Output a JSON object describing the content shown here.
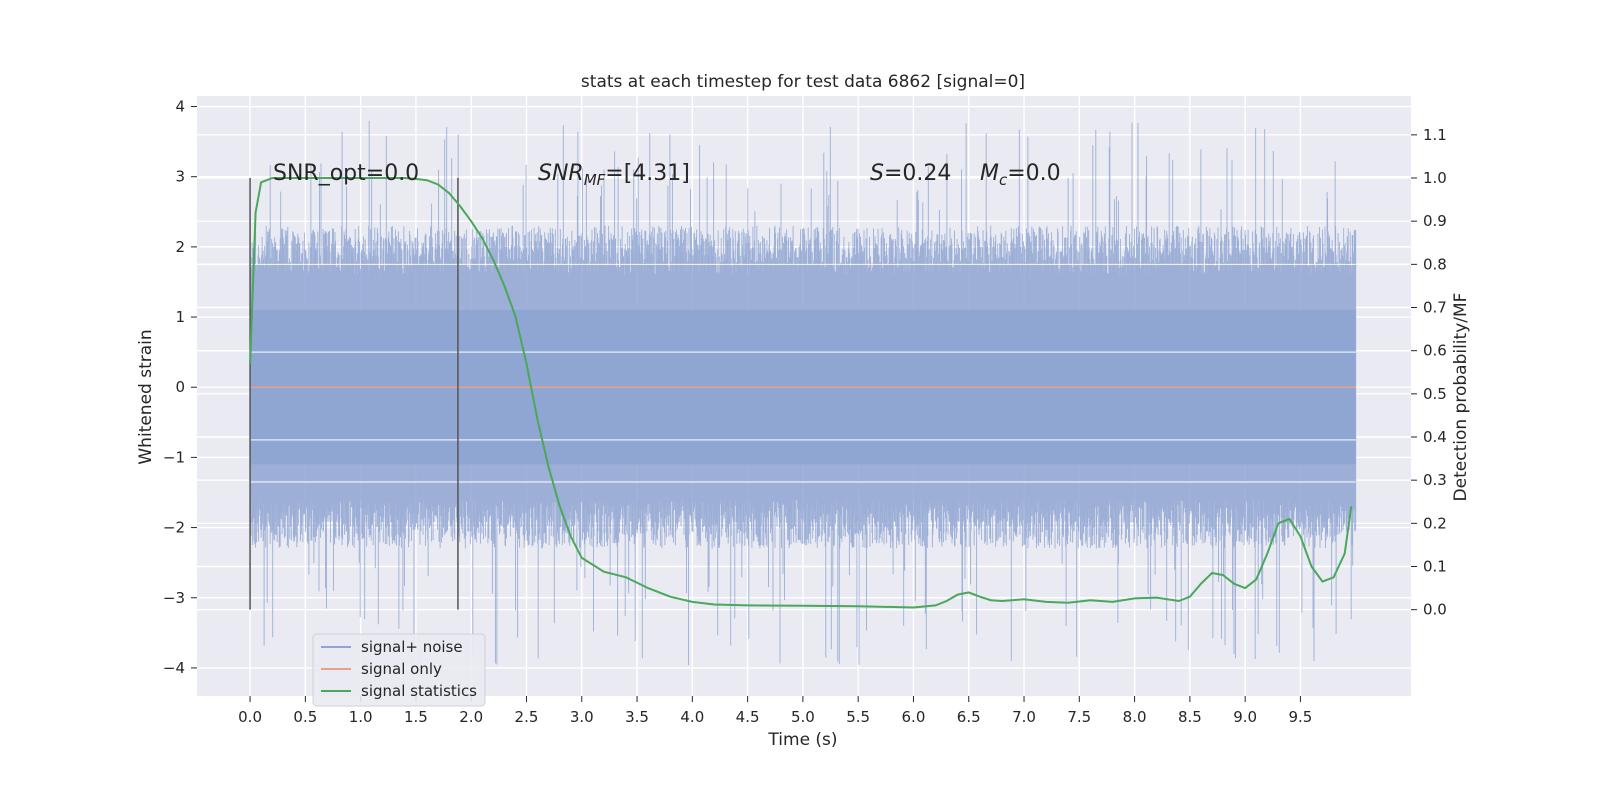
{
  "chart_data": {
    "type": "line",
    "title": "stats at each timestep for test data 6862 [signal=0]",
    "xlabel": "Time (s)",
    "ylabel_left": "Whitened strain",
    "ylabel_right": "Detection probability/MF",
    "xlim": [
      -0.48,
      10.5
    ],
    "ylim_left": [
      -4.4,
      4.15
    ],
    "ylim_right": [
      -0.2,
      1.19
    ],
    "x_ticks": [
      "0.0",
      "0.5",
      "1.0",
      "1.5",
      "2.0",
      "2.5",
      "3.0",
      "3.5",
      "4.0",
      "4.5",
      "5.0",
      "5.5",
      "6.0",
      "6.5",
      "7.0",
      "7.5",
      "8.0",
      "8.5",
      "9.0",
      "9.5"
    ],
    "y_ticks_left": [
      "−4",
      "−3",
      "−2",
      "−1",
      "0",
      "1",
      "2",
      "3",
      "4"
    ],
    "y_ticks_right": [
      "0.0",
      "0.1",
      "0.2",
      "0.3",
      "0.4",
      "0.5",
      "0.6",
      "0.7",
      "0.8",
      "0.9",
      "1.0",
      "1.1"
    ],
    "grid": true,
    "legend_position": "lower-left",
    "annotations": {
      "snr_opt": "SNR_opt=0.0",
      "snr_mf_main": "SNR",
      "snr_mf_sub": "MF",
      "snr_mf_value": "=[4.31]",
      "s_var": "S",
      "s_value": "=0.24",
      "mc_var": "M",
      "mc_sub": "c",
      "mc_value": "=0.0"
    },
    "window_markers_x": [
      0.0,
      1.88
    ],
    "series": [
      {
        "name": "signal+ noise",
        "color": "#8fa5d2",
        "axis": "left",
        "x_range": [
          0.0,
          10.0
        ],
        "envelope_note": "dense noise approximately within ±2.5, spikes up to about 3.8 and down to about -4.0"
      },
      {
        "name": "signal only",
        "color": "#e8a08a",
        "axis": "left",
        "x": [
          0.0,
          10.0
        ],
        "y": [
          0.0,
          0.0
        ]
      },
      {
        "name": "signal statistics",
        "color": "#4aa75b",
        "axis": "right",
        "x": [
          0.0,
          0.05,
          0.1,
          0.15,
          0.2,
          0.3,
          0.5,
          0.8,
          1.0,
          1.2,
          1.4,
          1.5,
          1.6,
          1.7,
          1.8,
          1.9,
          2.0,
          2.1,
          2.2,
          2.3,
          2.4,
          2.5,
          2.6,
          2.7,
          2.8,
          2.9,
          3.0,
          3.2,
          3.4,
          3.6,
          3.8,
          4.0,
          4.2,
          4.5,
          5.0,
          5.5,
          6.0,
          6.2,
          6.3,
          6.4,
          6.5,
          6.6,
          6.7,
          6.8,
          7.0,
          7.2,
          7.4,
          7.6,
          7.8,
          8.0,
          8.2,
          8.4,
          8.5,
          8.6,
          8.7,
          8.8,
          8.9,
          9.0,
          9.1,
          9.2,
          9.3,
          9.4,
          9.5,
          9.6,
          9.7,
          9.8,
          9.9,
          9.96
        ],
        "y": [
          0.57,
          0.92,
          0.99,
          0.995,
          1.0,
          1.0,
          1.0,
          1.0,
          1.0,
          1.0,
          1.0,
          0.998,
          0.995,
          0.985,
          0.965,
          0.935,
          0.9,
          0.86,
          0.81,
          0.75,
          0.68,
          0.57,
          0.44,
          0.33,
          0.24,
          0.17,
          0.12,
          0.088,
          0.075,
          0.05,
          0.03,
          0.018,
          0.012,
          0.01,
          0.009,
          0.008,
          0.005,
          0.01,
          0.02,
          0.035,
          0.04,
          0.03,
          0.022,
          0.02,
          0.024,
          0.018,
          0.016,
          0.022,
          0.018,
          0.026,
          0.028,
          0.02,
          0.03,
          0.06,
          0.085,
          0.08,
          0.06,
          0.05,
          0.07,
          0.13,
          0.2,
          0.21,
          0.17,
          0.1,
          0.065,
          0.075,
          0.13,
          0.24
        ]
      }
    ]
  }
}
